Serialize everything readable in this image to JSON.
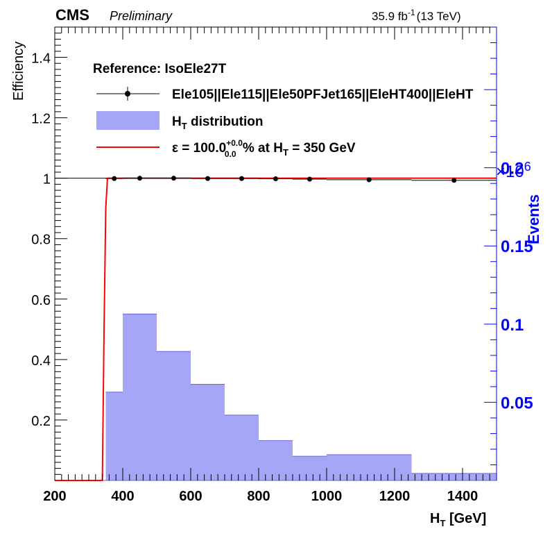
{
  "header": {
    "experiment": "CMS",
    "status": "Preliminary",
    "lumi_value": "35.9 fb",
    "lumi_exp": "-1",
    "energy": "(13 TeV)"
  },
  "axes": {
    "xlabel_main": "H",
    "xlabel_sub": "T",
    "xlabel_unit": " [GeV]",
    "ylabel_left": "Efficiency",
    "ylabel_right": "Events",
    "right_multiplier_prefix": "×10",
    "right_multiplier_exp": "6"
  },
  "legend": {
    "header": "Reference: IsoEle27T",
    "entry_efficiency": "Ele105||Ele115||Ele50PFJet165||EleHT400||EleHT",
    "entry_dist_main": "H",
    "entry_dist_sub": "T",
    "entry_dist_rest": " distribution",
    "entry_fit_eps": "ε =  100.0",
    "entry_fit_sup": "+0.0",
    "entry_fit_sub": "0.0",
    "entry_fit_mid": " % at H",
    "entry_fit_sub2": "T",
    "entry_fit_end": " = 350 GeV"
  },
  "colors": {
    "histogram_fill": "#a6a6f7",
    "histogram_edge": "#6666d9",
    "fit_line": "#ff0000",
    "right_axis": "#0000ff",
    "markers": "#000000"
  },
  "chart_data": {
    "type": "line",
    "xlim": [
      200,
      1500
    ],
    "ylim_left": [
      0,
      1.5
    ],
    "ylim_right_millions": [
      0,
      0.29
    ],
    "x_ticks": [
      200,
      400,
      600,
      800,
      1000,
      1200,
      1400
    ],
    "y_left_ticks": [
      0.2,
      0.4,
      0.6,
      0.8,
      1,
      1.2,
      1.4
    ],
    "y_right_ticks": [
      0.05,
      0.1,
      0.15,
      0.2
    ],
    "x_tick_labels": [
      "200",
      "400",
      "600",
      "800",
      "1000",
      "1200",
      "1400"
    ],
    "y_left_tick_labels": [
      "0.2",
      "0.4",
      "0.6",
      "0.8",
      "1",
      "1.2",
      "1.4"
    ],
    "y_right_tick_labels": [
      "0.05",
      "0.1",
      "0.15",
      "0.2"
    ],
    "efficiency": {
      "name": "Ele105||Ele115||Ele50PFJet165||EleHT400||EleHT",
      "points": [
        {
          "x": 375,
          "xerr": 25,
          "y": 0.999
        },
        {
          "x": 450,
          "xerr": 50,
          "y": 1.0
        },
        {
          "x": 550,
          "xerr": 50,
          "y": 1.0
        },
        {
          "x": 650,
          "xerr": 50,
          "y": 0.999
        },
        {
          "x": 750,
          "xerr": 50,
          "y": 0.999
        },
        {
          "x": 850,
          "xerr": 50,
          "y": 0.998
        },
        {
          "x": 950,
          "xerr": 50,
          "y": 0.997
        },
        {
          "x": 1125,
          "xerr": 125,
          "y": 0.995
        },
        {
          "x": 1375,
          "xerr": 125,
          "y": 0.993
        }
      ]
    },
    "ht_distribution_millions": {
      "name": "H_T distribution",
      "bins": [
        {
          "low": 350,
          "high": 400,
          "value": 0.0565
        },
        {
          "low": 400,
          "high": 500,
          "value": 0.1065
        },
        {
          "low": 500,
          "high": 600,
          "value": 0.0825
        },
        {
          "low": 600,
          "high": 700,
          "value": 0.0615
        },
        {
          "low": 700,
          "high": 800,
          "value": 0.0418
        },
        {
          "low": 800,
          "high": 900,
          "value": 0.0255
        },
        {
          "low": 900,
          "high": 1000,
          "value": 0.0155
        },
        {
          "low": 1000,
          "high": 1250,
          "value": 0.0165
        },
        {
          "low": 1250,
          "high": 1500,
          "value": 0.0045
        }
      ]
    },
    "fit_curve": {
      "name": "fit",
      "points": [
        [
          200,
          0
        ],
        [
          340,
          0
        ],
        [
          345,
          0.5
        ],
        [
          350,
          0.9
        ],
        [
          355,
          1.0
        ],
        [
          1500,
          1.0
        ]
      ]
    }
  }
}
